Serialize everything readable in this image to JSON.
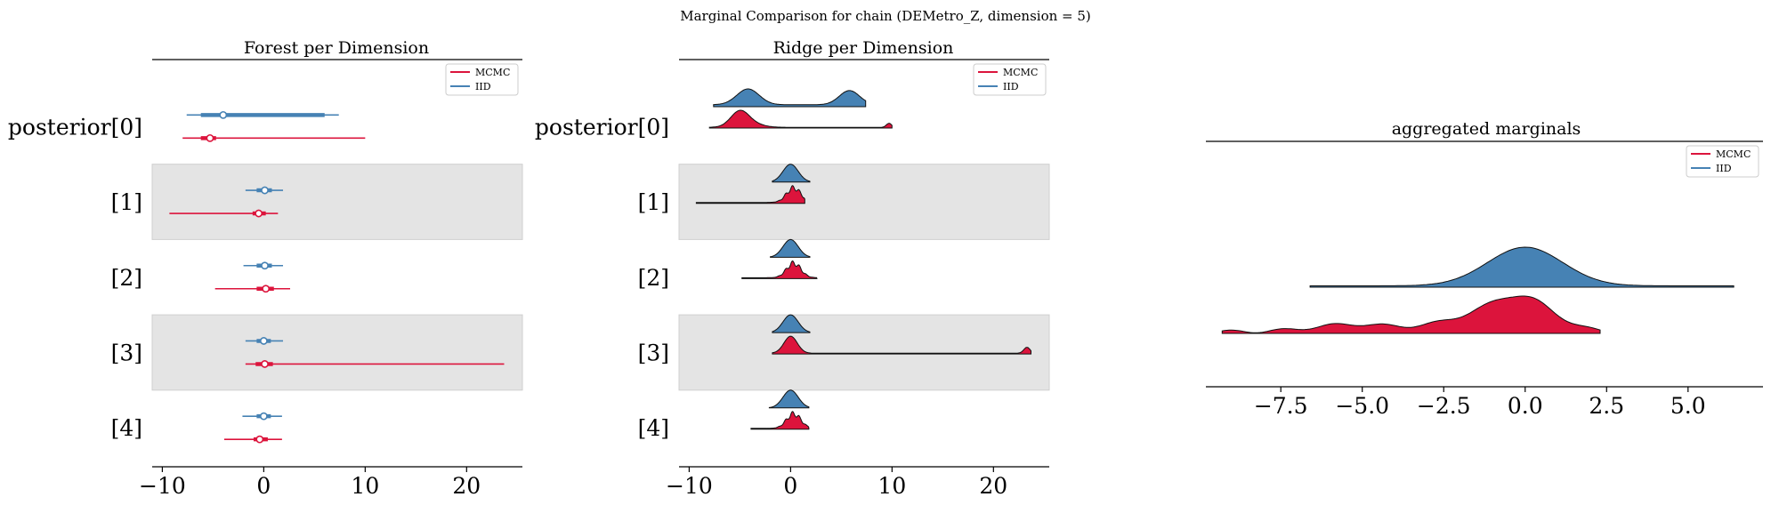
{
  "figure": {
    "suptitle": "Marginal Comparison for chain (DEMetro_Z, dimension = 5)"
  },
  "colors": {
    "mcmc": "#dc143c",
    "iid": "#4682b4",
    "band": "#e4e4e4"
  },
  "chart_data": [
    {
      "type": "forest",
      "title": "Forest per Dimension",
      "categories": [
        "posterior[0]",
        "[1]",
        "[2]",
        "[3]",
        "[4]"
      ],
      "xlim": [
        -11,
        25.5
      ],
      "xticks": [
        -10,
        0,
        10,
        20
      ],
      "xtick_labels": [
        "−10",
        "0",
        "10",
        "20"
      ],
      "legend": {
        "entries": [
          "MCMC",
          "IID"
        ],
        "placement": "top-right"
      },
      "series": [
        {
          "name": "MCMC",
          "color": "#dc143c",
          "median": [
            -5.3,
            -0.5,
            0.2,
            0.1,
            -0.4
          ],
          "inner": [
            [
              -6.2,
              -4.7
            ],
            [
              -1.1,
              0.2
            ],
            [
              -0.7,
              1.0
            ],
            [
              -0.8,
              0.9
            ],
            [
              -1.0,
              0.4
            ]
          ],
          "outer": [
            [
              -8,
              10
            ],
            [
              -9.3,
              1.4
            ],
            [
              -4.8,
              2.6
            ],
            [
              -1.8,
              23.7
            ],
            [
              -3.9,
              1.8
            ]
          ]
        },
        {
          "name": "IID",
          "color": "#4682b4",
          "median": [
            -4,
            0.1,
            0.1,
            0,
            0
          ],
          "inner": [
            [
              -6.2,
              6
            ],
            [
              -0.7,
              0.8
            ],
            [
              -0.7,
              0.8
            ],
            [
              -0.7,
              0.7
            ],
            [
              -0.7,
              0.7
            ]
          ],
          "outer": [
            [
              -7.6,
              7.4
            ],
            [
              -1.8,
              1.9
            ],
            [
              -2,
              1.9
            ],
            [
              -1.8,
              1.9
            ],
            [
              -2.1,
              1.8
            ]
          ]
        }
      ]
    },
    {
      "type": "ridge",
      "title": "Ridge per Dimension",
      "categories": [
        "posterior[0]",
        "[1]",
        "[2]",
        "[3]",
        "[4]"
      ],
      "xlim": [
        -11,
        25.5
      ],
      "xticks": [
        -10,
        0,
        10,
        20
      ],
      "xtick_labels": [
        "−10",
        "0",
        "10",
        "20"
      ],
      "legend": {
        "entries": [
          "MCMC",
          "IID"
        ],
        "placement": "top-right"
      },
      "series": [
        {
          "name": "MCMC",
          "color": "#dc143c",
          "ranges": [
            [
              -8,
              10
            ],
            [
              -9.3,
              1.4
            ],
            [
              -4.8,
              2.6
            ],
            [
              -1.8,
              23.7
            ],
            [
              -3.9,
              1.8
            ]
          ]
        },
        {
          "name": "IID",
          "color": "#4682b4",
          "ranges": [
            [
              -7.6,
              7.4
            ],
            [
              -1.8,
              1.9
            ],
            [
              -2,
              1.9
            ],
            [
              -1.8,
              1.9
            ],
            [
              -2.1,
              1.8
            ]
          ]
        }
      ]
    },
    {
      "type": "ridge",
      "title": "aggregated marginals",
      "xlim": [
        -9.8,
        7.3
      ],
      "xticks": [
        -7.5,
        -5,
        -2.5,
        0,
        2.5,
        5
      ],
      "xtick_labels": [
        "−7.5",
        "−5.0",
        "−2.5",
        "0.0",
        "2.5",
        "5.0"
      ],
      "legend": {
        "entries": [
          "MCMC",
          "IID"
        ],
        "placement": "top-right"
      },
      "series": [
        {
          "name": "IID",
          "color": "#4682b4",
          "range": [
            -6.6,
            6.4
          ]
        },
        {
          "name": "MCMC",
          "color": "#dc143c",
          "range": [
            -9.3,
            2.3
          ]
        }
      ]
    }
  ]
}
